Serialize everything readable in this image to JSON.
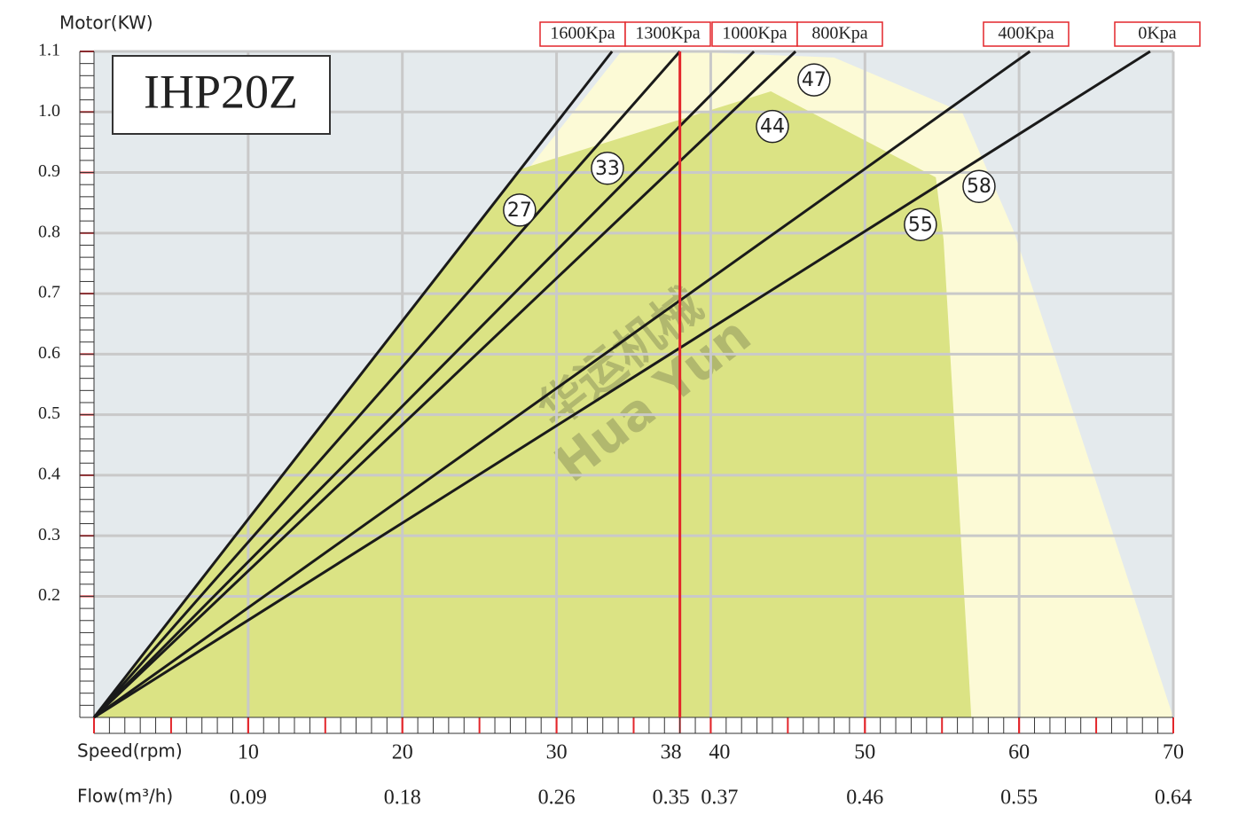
{
  "chart_data": {
    "type": "line",
    "title": "IHP20Z",
    "y_label": "Motor(KW)",
    "x_label": "Speed(rpm)",
    "x2_label": "Flow(m³/h)",
    "watermark": [
      "华运机械",
      "Hua Yun"
    ],
    "xlim": [
      0,
      70
    ],
    "ylim": [
      0,
      1.1
    ],
    "xticks": [
      10,
      20,
      30,
      38,
      40,
      50,
      60,
      70
    ],
    "x2ticks": [
      0.09,
      0.18,
      0.26,
      0.35,
      0.37,
      0.46,
      0.55,
      0.64
    ],
    "yticks": [
      0.2,
      0.3,
      0.4,
      0.5,
      0.6,
      0.7,
      0.8,
      0.9,
      {
        "value": 1,
        "label": "1.0"
      },
      1.1
    ],
    "grid": true,
    "marker_x": 38,
    "marker_color": "#e3262b",
    "background": "#e4eaed",
    "areas": [
      {
        "color": "#fcfad6",
        "x": [
          0,
          34.2,
          38,
          48,
          56.3,
          59.7,
          70
        ],
        "values": [
          0,
          1.1,
          1.1,
          1.09,
          1,
          0.8,
          0
        ]
      },
      {
        "color": "#dbe384",
        "x": [
          0,
          27.7,
          43.9,
          54.6,
          55.1,
          56.9
        ],
        "values": [
          0,
          0.906,
          1.034,
          0.892,
          0.789,
          0
        ]
      }
    ],
    "series": [
      {
        "name": "1600Kpa",
        "color": "#1a1a1a",
        "x": [
          0,
          33.6
        ],
        "values": [
          0,
          1.1
        ]
      },
      {
        "name": "1300Kpa",
        "color": "#1a1a1a",
        "x": [
          0,
          38
        ],
        "values": [
          0,
          1.1
        ]
      },
      {
        "name": "1000Kpa",
        "color": "#1a1a1a",
        "x": [
          0,
          42.8
        ],
        "values": [
          0,
          1.1
        ]
      },
      {
        "name": "800Kpa",
        "color": "#1a1a1a",
        "x": [
          0,
          45.5
        ],
        "values": [
          0,
          1.1
        ]
      },
      {
        "name": "400Kpa",
        "color": "#1a1a1a",
        "x": [
          0,
          60.7
        ],
        "values": [
          0,
          1.1
        ]
      },
      {
        "name": "0Kpa",
        "color": "#1a1a1a",
        "x": [
          0,
          68.5
        ],
        "values": [
          0,
          1.1
        ]
      }
    ],
    "annotations": [
      {
        "text": "27",
        "x": 27.6,
        "y": 0.838
      },
      {
        "text": "33",
        "x": 33.3,
        "y": 0.907
      },
      {
        "text": "47",
        "x": 46.7,
        "y": 1.053
      },
      {
        "text": "44",
        "x": 44,
        "y": 0.976
      },
      {
        "text": "58",
        "x": 57.4,
        "y": 0.877
      },
      {
        "text": "55",
        "x": 53.6,
        "y": 0.814
      }
    ]
  }
}
